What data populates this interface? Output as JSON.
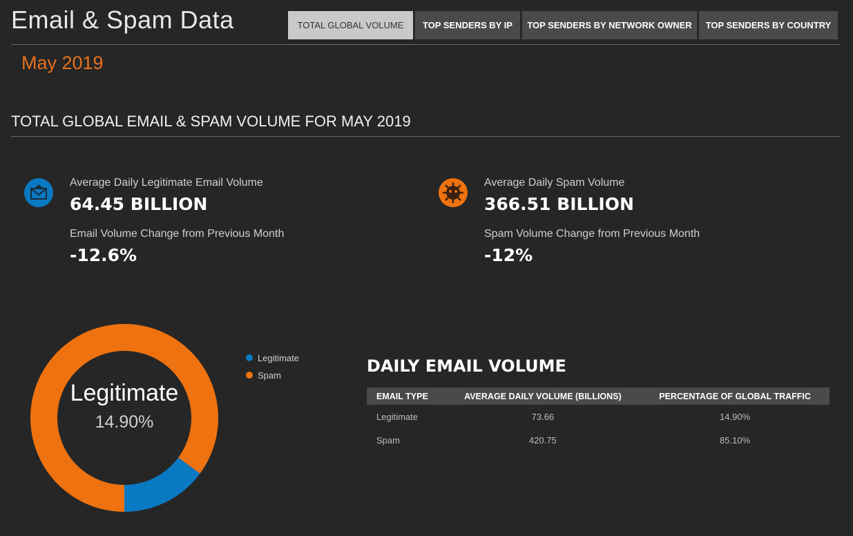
{
  "header": {
    "title": "Email & Spam Data",
    "tabs": [
      "TOTAL GLOBAL VOLUME",
      "TOP SENDERS BY IP",
      "TOP SENDERS BY NETWORK OWNER",
      "TOP SENDERS BY COUNTRY"
    ]
  },
  "period": "May 2019",
  "section_title": "TOTAL GLOBAL EMAIL & SPAM VOLUME FOR MAY 2019",
  "stats": [
    {
      "label": "Average Daily Legitimate Email Volume",
      "value": "64.45 BILLION",
      "change_label": "Email Volume Change from Previous Month",
      "change": "-12.6%"
    },
    {
      "label": "Average Daily Spam Volume",
      "value": "366.51 BILLION",
      "change_label": "Spam Volume Change from Previous Month",
      "change": "-12%"
    }
  ],
  "donut": {
    "center_label": "Legitimate",
    "center_value": "14.90%",
    "series": [
      {
        "name": "Legitimate",
        "color": "#0a79c3",
        "value": 14.9
      },
      {
        "name": "Spam",
        "color": "#ee720f",
        "value": 85.1
      }
    ]
  },
  "table": {
    "title": "DAILY EMAIL VOLUME",
    "columns": [
      "EMAIL TYPE",
      "AVERAGE DAILY VOLUME (BILLIONS)",
      "PERCENTAGE OF GLOBAL TRAFFIC"
    ],
    "rows": [
      [
        "Legitimate",
        "73.66",
        "14.90%"
      ],
      [
        "Spam",
        "420.75",
        "85.10%"
      ]
    ]
  }
}
